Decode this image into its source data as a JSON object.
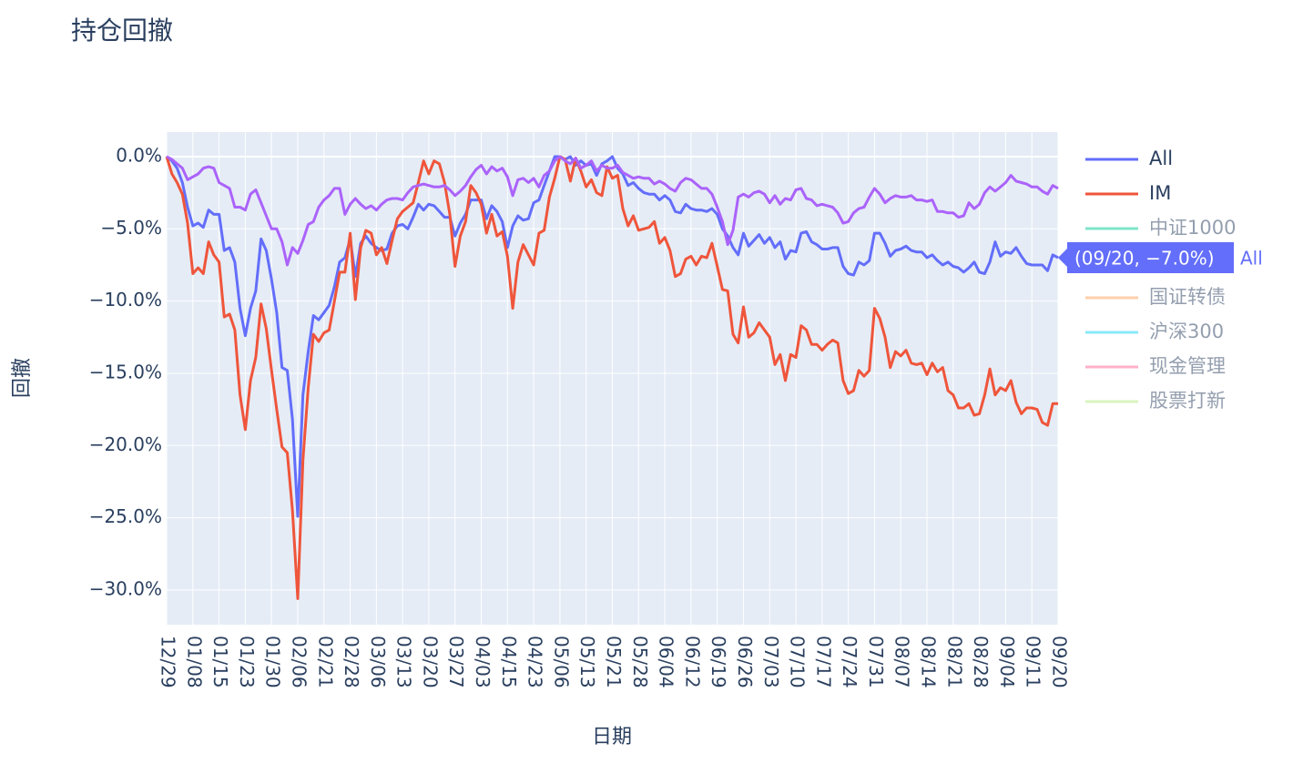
{
  "chart_data": {
    "type": "line",
    "title": "持仓回撤",
    "x_label": "日期",
    "y_label": "回撤",
    "categories": [
      "12/29",
      null,
      null,
      null,
      null,
      "01/08",
      null,
      null,
      null,
      null,
      "01/15",
      null,
      null,
      null,
      null,
      "01/23",
      null,
      null,
      null,
      null,
      "01/30",
      null,
      null,
      null,
      null,
      "02/06",
      null,
      null,
      null,
      null,
      "02/21",
      null,
      null,
      null,
      null,
      "02/28",
      null,
      null,
      null,
      null,
      "03/06",
      null,
      null,
      null,
      null,
      "03/13",
      null,
      null,
      null,
      null,
      "03/20",
      null,
      null,
      null,
      null,
      "03/27",
      null,
      null,
      null,
      null,
      "04/03",
      null,
      null,
      null,
      null,
      "04/15",
      null,
      null,
      null,
      null,
      "04/23",
      null,
      null,
      null,
      null,
      "05/06",
      null,
      null,
      null,
      null,
      "05/13",
      null,
      null,
      null,
      null,
      "05/21",
      null,
      null,
      null,
      null,
      "05/28",
      null,
      null,
      null,
      null,
      "06/04",
      null,
      null,
      null,
      null,
      "06/12",
      null,
      null,
      null,
      null,
      "06/19",
      null,
      null,
      null,
      null,
      "06/26",
      null,
      null,
      null,
      null,
      "07/03",
      null,
      null,
      null,
      null,
      "07/10",
      null,
      null,
      null,
      null,
      "07/17",
      null,
      null,
      null,
      null,
      "07/24",
      null,
      null,
      null,
      null,
      "07/31",
      null,
      null,
      null,
      null,
      "08/07",
      null,
      null,
      null,
      null,
      "08/14",
      null,
      null,
      null,
      null,
      "08/21",
      null,
      null,
      null,
      null,
      "08/28",
      null,
      null,
      null,
      null,
      "09/04",
      null,
      null,
      null,
      null,
      "09/11",
      null,
      null,
      null,
      null,
      "09/20"
    ],
    "ylim": [
      -32.4,
      1.7
    ],
    "yticks": [
      {
        "value": 0,
        "label": "0.0%"
      },
      {
        "value": -5,
        "label": "−5.0%"
      },
      {
        "value": -10,
        "label": "−10.0%"
      },
      {
        "value": -15,
        "label": "−15.0%"
      },
      {
        "value": -20,
        "label": "−20.0%"
      },
      {
        "value": -25,
        "label": "−25.0%"
      },
      {
        "value": -30,
        "label": "−30.0%"
      }
    ],
    "grid": true,
    "series": [
      {
        "name": "All",
        "color": "#636efa",
        "values": [
          0,
          -0.3,
          -0.8,
          -1.8,
          -3.5,
          -4.8,
          -4.6,
          -4.9,
          -3.7,
          -4.0,
          -4.0,
          -6.5,
          -6.3,
          -7.3,
          -10.5,
          -12.4,
          -10.5,
          -9.3,
          -5.7,
          -6.5,
          -8.5,
          -10.8,
          -14.6,
          -14.8,
          -18.2,
          -24.9,
          -16.5,
          -13.5,
          -11.0,
          -11.3,
          -10.8,
          -10.3,
          -9.0,
          -7.3,
          -7.0,
          -5.7,
          -8.3,
          -6.0,
          -5.5,
          -6.0,
          -6.3,
          -6.5,
          -6.4,
          -5.3,
          -4.8,
          -4.7,
          -5.0,
          -4.2,
          -3.3,
          -3.7,
          -3.3,
          -3.4,
          -3.8,
          -4.2,
          -4.2,
          -5.5,
          -4.6,
          -4.0,
          -3.0,
          -3.0,
          -3.0,
          -4.3,
          -3.4,
          -3.8,
          -4.5,
          -6.3,
          -4.8,
          -4.1,
          -4.4,
          -4.3,
          -3.2,
          -3.0,
          -2.0,
          -1.0,
          0,
          0,
          -0.2,
          0,
          -0.6,
          -0.3,
          -0.6,
          -0.5,
          -1.3,
          -0.5,
          -0.3,
          0,
          -0.8,
          -1.2,
          -2.0,
          -1.8,
          -2.2,
          -2.5,
          -2.6,
          -2.6,
          -3.0,
          -2.7,
          -3.0,
          -3.8,
          -3.9,
          -3.3,
          -3.6,
          -3.7,
          -3.7,
          -3.8,
          -3.6,
          -4.0,
          -5.0,
          -5.5,
          -6.3,
          -6.8,
          -5.3,
          -6.2,
          -5.8,
          -5.4,
          -6.0,
          -5.6,
          -6.3,
          -5.9,
          -7.1,
          -6.5,
          -6.6,
          -5.3,
          -5.2,
          -5.9,
          -6.1,
          -6.4,
          -6.4,
          -6.3,
          -6.3,
          -7.6,
          -8.1,
          -8.2,
          -7.3,
          -7.5,
          -7.2,
          -5.3,
          -5.3,
          -6.0,
          -6.9,
          -6.5,
          -6.4,
          -6.2,
          -6.5,
          -6.6,
          -6.6,
          -7.0,
          -6.8,
          -7.2,
          -7.5,
          -7.3,
          -7.6,
          -7.7,
          -8.0,
          -7.7,
          -7.3,
          -8.0,
          -8.1,
          -7.3,
          -5.9,
          -6.9,
          -6.6,
          -6.7,
          -6.3,
          -6.9,
          -7.4,
          -7.5,
          -7.5,
          -7.5,
          -7.9,
          -6.8,
          -7.0
        ]
      },
      {
        "name": "IM",
        "color": "#ef553b",
        "values": [
          0,
          -1.2,
          -1.8,
          -2.6,
          -4.6,
          -8.1,
          -7.7,
          -8.1,
          -5.9,
          -6.8,
          -7.3,
          -11.1,
          -10.9,
          -12.0,
          -16.5,
          -18.9,
          -15.5,
          -13.9,
          -10.2,
          -11.9,
          -14.8,
          -17.5,
          -20.1,
          -20.5,
          -24.5,
          -30.6,
          -21.0,
          -16.0,
          -12.3,
          -12.8,
          -12.2,
          -12.0,
          -10.0,
          -8.0,
          -8.0,
          -5.3,
          -9.9,
          -6.3,
          -5.1,
          -5.3,
          -6.8,
          -6.3,
          -7.4,
          -5.8,
          -4.3,
          -3.8,
          -3.5,
          -3.2,
          -1.8,
          -0.3,
          -1.2,
          -0.3,
          -0.5,
          -1.8,
          -4.0,
          -7.6,
          -5.5,
          -4.5,
          -2.0,
          -2.5,
          -3.3,
          -5.3,
          -4.0,
          -5.5,
          -5.2,
          -6.9,
          -10.5,
          -7.3,
          -6.1,
          -6.8,
          -7.5,
          -5.3,
          -5.1,
          -2.8,
          -1.5,
          0,
          -0.2,
          -1.7,
          -0.1,
          -1.0,
          -2.1,
          -1.6,
          -2.5,
          -2.7,
          -0.7,
          -1.5,
          -1.3,
          -3.6,
          -4.8,
          -4.1,
          -5.1,
          -5.0,
          -4.9,
          -4.5,
          -6.0,
          -5.6,
          -6.5,
          -8.3,
          -8.1,
          -7.1,
          -6.9,
          -7.5,
          -6.9,
          -7.0,
          -6.0,
          -7.6,
          -9.2,
          -9.3,
          -12.3,
          -12.9,
          -10.4,
          -12.5,
          -12.2,
          -11.5,
          -12.0,
          -12.5,
          -14.4,
          -13.7,
          -15.5,
          -13.7,
          -13.9,
          -11.7,
          -12.0,
          -13.0,
          -13.0,
          -13.4,
          -13.0,
          -12.7,
          -12.9,
          -15.5,
          -16.4,
          -16.2,
          -14.8,
          -15.2,
          -14.8,
          -10.5,
          -11.2,
          -12.5,
          -14.6,
          -13.5,
          -13.8,
          -13.4,
          -14.3,
          -14.4,
          -14.3,
          -15.1,
          -14.3,
          -14.9,
          -14.6,
          -16.2,
          -16.5,
          -17.4,
          -17.4,
          -17.1,
          -17.9,
          -17.8,
          -16.5,
          -14.7,
          -16.5,
          -16.0,
          -16.2,
          -15.5,
          -17.0,
          -17.8,
          -17.4,
          -17.4,
          -17.5,
          -18.4,
          -18.6,
          -17.1,
          -17.1
        ]
      },
      {
        "name": "中证1000",
        "color": "#00cc96",
        "visible": "legendonly"
      },
      {
        "color": "#ab63fa",
        "values": [
          0,
          -0.2,
          -0.5,
          -0.8,
          -1.6,
          -1.4,
          -1.2,
          -0.8,
          -0.7,
          -0.8,
          -1.8,
          -2.0,
          -2.2,
          -3.5,
          -3.5,
          -3.7,
          -2.6,
          -2.3,
          -3.2,
          -4.1,
          -5.0,
          -5.0,
          -5.9,
          -7.5,
          -6.3,
          -6.7,
          -5.8,
          -4.7,
          -4.5,
          -3.5,
          -3.0,
          -2.7,
          -2.2,
          -2.2,
          -4.0,
          -3.3,
          -2.9,
          -3.3,
          -3.6,
          -3.4,
          -3.7,
          -3.3,
          -3.0,
          -2.9,
          -2.9,
          -3.0,
          -2.5,
          -2.1,
          -2.0,
          -1.9,
          -2.0,
          -2.1,
          -2.1,
          -2.0,
          -2.3,
          -2.7,
          -2.4,
          -2.0,
          -1.4,
          -0.9,
          -0.6,
          -1.2,
          -0.7,
          -1.0,
          -0.8,
          -1.4,
          -2.7,
          -1.6,
          -1.5,
          -1.8,
          -1.5,
          -2.1,
          -1.3,
          -1.0,
          -0.3,
          0,
          -0.3,
          -0.5,
          -0.1,
          -0.8,
          -0.6,
          -0.3,
          -1.0,
          -0.6,
          -0.8,
          -0.8,
          -0.6,
          -1.1,
          -1.3,
          -1.5,
          -1.4,
          -1.5,
          -1.5,
          -1.9,
          -1.7,
          -1.9,
          -2.2,
          -2.4,
          -1.8,
          -1.5,
          -1.6,
          -1.9,
          -2.2,
          -2.2,
          -2.6,
          -3.5,
          -4.5,
          -6.1,
          -5.1,
          -2.8,
          -2.6,
          -2.8,
          -2.5,
          -2.4,
          -2.6,
          -3.2,
          -2.7,
          -3.3,
          -2.9,
          -3.0,
          -2.3,
          -2.2,
          -2.9,
          -3.0,
          -3.4,
          -3.3,
          -3.4,
          -3.5,
          -3.9,
          -4.6,
          -4.5,
          -3.9,
          -3.6,
          -3.5,
          -2.8,
          -2.2,
          -2.6,
          -3.2,
          -2.9,
          -2.7,
          -2.8,
          -2.8,
          -2.7,
          -3.0,
          -3.0,
          -3.1,
          -3.0,
          -3.8,
          -3.8,
          -3.9,
          -3.9,
          -4.2,
          -4.1,
          -3.2,
          -3.6,
          -3.3,
          -2.5,
          -2.1,
          -2.4,
          -2.1,
          -1.8,
          -1.3,
          -1.7,
          -1.8,
          -1.9,
          -2.1,
          -2.1,
          -2.4,
          -2.6,
          -2.0,
          -2.2
        ]
      },
      {
        "name": "国证转债",
        "color": "#ffa15a",
        "visible": "legendonly"
      },
      {
        "name": "沪深300",
        "color": "#19d3f3",
        "visible": "legendonly"
      },
      {
        "name": "现金管理",
        "color": "#ff6692",
        "visible": "legendonly"
      },
      {
        "name": "股票打新",
        "color": "#b6e880",
        "visible": "legendonly"
      }
    ],
    "hover": {
      "label": "(09/20, −7.0%)",
      "series": 0
    }
  }
}
